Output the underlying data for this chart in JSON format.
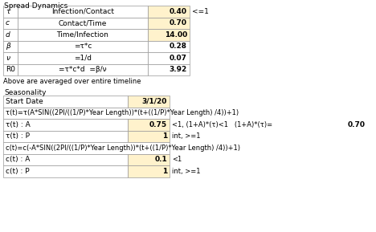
{
  "title1": "Spread Dynamics",
  "title2": "Seasonality",
  "note": "Above are averaged over entire timeline",
  "spread_rows": [
    {
      "sym": "τ",
      "label": "Infection/Contact",
      "value": "0.40",
      "constraint": "<=1",
      "hl_val": true
    },
    {
      "sym": "c",
      "label": "Contact/Time",
      "value": "0.70",
      "constraint": "",
      "hl_val": true
    },
    {
      "sym": "d",
      "label": "Time/Infection",
      "value": "14.00",
      "constraint": "",
      "hl_val": true
    },
    {
      "sym": "β",
      "label": "=τ*c",
      "value": "0.28",
      "constraint": "",
      "hl_val": false
    },
    {
      "sym": "ν",
      "label": "=1/d",
      "value": "0.07",
      "constraint": "",
      "hl_val": false
    },
    {
      "sym": "R0",
      "label": "=τ*c*d  =β/ν",
      "value": "3.92",
      "constraint": "",
      "hl_val": false
    }
  ],
  "season_rows": [
    {
      "label": "Start Date",
      "value": "3/1/20",
      "constraint": "",
      "extra": "",
      "hl_val": true,
      "span": false
    },
    {
      "label": "τ(t)=τ(A*SIN((2PI/((1/P)*Year Length))*(t+((1/P)*Year Length) /4))+1)",
      "value": "",
      "constraint": "",
      "extra": "",
      "hl_val": false,
      "span": true
    },
    {
      "label": "τ(t) : A",
      "value": "0.75",
      "constraint": "<1, (1+A)*(τ)<1   (1+A)*(τ)=",
      "extra": "0.70",
      "hl_val": true,
      "span": false
    },
    {
      "label": "τ(t) : P",
      "value": "1",
      "constraint": "int, >=1",
      "extra": "",
      "hl_val": true,
      "span": false
    },
    {
      "label": "c(t)=c(-A*SIN((2PI/((1/P)*Year Length))*(t+((1/P)*Year Length) /4))+1)",
      "value": "",
      "constraint": "",
      "extra": "",
      "hl_val": false,
      "span": true
    },
    {
      "label": "c(t) : A",
      "value": "0.1",
      "constraint": "<1",
      "extra": "",
      "hl_val": true,
      "span": false
    },
    {
      "label": "c(t) : P",
      "value": "1",
      "constraint": "int, >=1",
      "extra": "",
      "hl_val": true,
      "span": false
    }
  ],
  "highlight_color": "#FFF2CC",
  "border_color": "#999999",
  "text_color": "#000000",
  "bg_color": "#FFFFFF",
  "font_size": 6.5
}
